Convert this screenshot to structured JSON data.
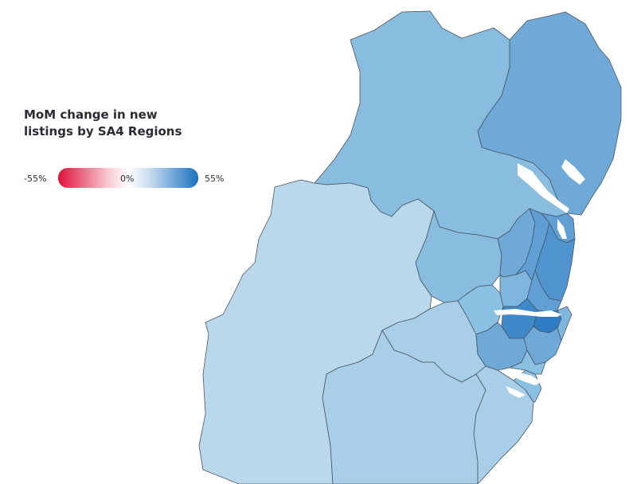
{
  "legend": {
    "title_line1": "MoM change in new",
    "title_line2": "listings by SA4 Regions",
    "min_label": "-55%",
    "mid_label": "0%",
    "max_label": "55%",
    "colors": {
      "negative": "#e0103a",
      "neutral": "#ffffff",
      "positive": "#1a6fbf"
    }
  },
  "map": {
    "region_colors": {
      "hunter_north": "#6ea9d8",
      "new_england_outer": "#88bde0",
      "central_west": "#88bde0",
      "far_west": "#b9d8ec",
      "riverina": "#a9cfe8",
      "murray": "#a9cfe8",
      "capital_region": "#a9cfe8",
      "southern_highlands": "#8ac0e1",
      "illawarra": "#8ac0e1",
      "blue_mountains": "#6ea9d8",
      "outer_west": "#7fb6de",
      "north_west": "#5f9fd4",
      "central_coast": "#5f9fd4",
      "northern_beaches": "#4f94cf",
      "north_shore": "#5f9fd4",
      "inner_west": "#3f88ca",
      "city_core": "#2f7bc4",
      "south_west": "#6ea9d8",
      "sutherland": "#6ea9d8",
      "eastern_suburbs": "#7fb6de",
      "macarthur": "#8ac0e1"
    }
  }
}
